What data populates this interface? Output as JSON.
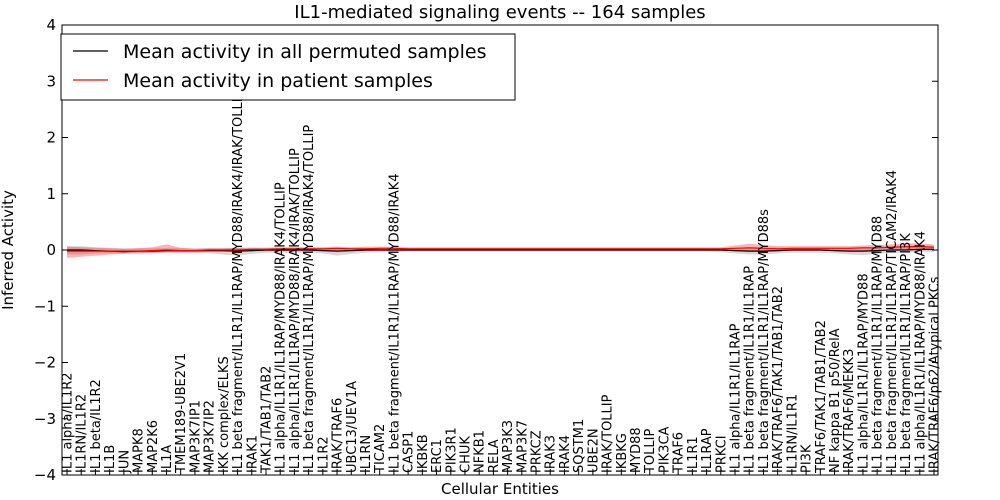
{
  "chart_data": {
    "type": "line",
    "title": "IL1-mediated signaling events -- 164 samples",
    "xlabel": "Cellular Entities",
    "ylabel": "Inferred Activity",
    "ylim": [
      -4,
      4
    ],
    "yticks": [
      -4,
      -3,
      -2,
      -1,
      0,
      1,
      2,
      3,
      4
    ],
    "ytick_labels": [
      "−4",
      "−3",
      "−2",
      "−1",
      "0",
      "1",
      "2",
      "3",
      "4"
    ],
    "grid": false,
    "legend_position": "top-left",
    "categories": [
      "IL1 alpha/IL1R2",
      "IL1RN/IL1R2",
      "IL1 beta/IL1R2",
      "IL1B",
      "JUN",
      "MAPK8",
      "MAP2K6",
      "IL1A",
      "TMEM189-UBE2V1",
      "MAP3K7IP1",
      "MAP3K7IP2",
      "IKK complex/ELKS",
      "IL1 beta fragment/IL1R1/IL1RAP/MYD88/IRAK4/IRAK/TOLLIP",
      "IRAK1",
      "TAK1/TAB1/TAB2",
      "IL1 alpha/IL1R1/IL1RAP/MYD88/IRAK4/TOLLIP",
      "IL1 alpha/IL1R1/IL1RAP/MYD88/IRAK4/IRAK/TOLLIP",
      "IL1 beta fragment/IL1R1/IL1RAP/MYD88/IRAK4/TOLLIP",
      "IL1R2",
      "IRAK/TRAF6",
      "UBC13/UEV1A",
      "IL1RN",
      "TICAM2",
      "IL1 beta fragment/IL1R1/IL1RAP/MYD88/IRAK4",
      "CASP1",
      "IKBKB",
      "ERC1",
      "PIK3R1",
      "CHUK",
      "NFKB1",
      "RELA",
      "MAP3K3",
      "MAP3K7",
      "PRKCZ",
      "IRAK3",
      "IRAK4",
      "SQSTM1",
      "UBE2N",
      "IRAK/TOLLIP",
      "IKBKG",
      "MYD88",
      "TOLLIP",
      "PIK3CA",
      "TRAF6",
      "IL1R1",
      "IL1RAP",
      "PRKCI",
      "IL1 alpha/IL1R1/IL1RAP",
      "IL1 beta fragment/IL1R1/IL1RAP",
      "IL1 beta fragment/IL1R1/IL1RAP/MYD88s",
      "IRAK/TRAF6/TAK1/TAB1/TAB2",
      "IL1RN/IL1R1",
      "PI3K",
      "TRAF6/TAK1/TAB1/TAB2",
      "NF kappa B1 p50/RelA",
      "IRAK/TRAF6/MEKK3",
      "IL1 alpha/IL1R1/IL1RAP/MYD88",
      "IL1 beta fragment/IL1R1/IL1RAP/MYD88",
      "IL1 beta fragment/IL1R1/IL1RAP/TICAM2/IRAK4",
      "IL1 beta fragment/IL1R1/IL1RAP/PI3K",
      "IL1 alpha/IL1R1/IL1RAP/MYD88/IRAK4",
      "IRAK/TRAF6/p62/Atypical PKCs"
    ],
    "series": [
      {
        "name": "Mean activity in all permuted samples",
        "color": "#000000",
        "values": [
          0.0,
          0.0,
          -0.01,
          -0.02,
          -0.03,
          -0.02,
          -0.02,
          -0.01,
          -0.01,
          -0.01,
          -0.01,
          -0.01,
          -0.02,
          -0.01,
          0.0,
          0.0,
          0.0,
          0.0,
          -0.01,
          -0.02,
          -0.01,
          0.0,
          0.0,
          0.0,
          0.0,
          0.0,
          0.0,
          0.0,
          0.0,
          0.0,
          0.0,
          0.0,
          0.0,
          0.0,
          0.0,
          0.0,
          0.0,
          0.0,
          0.0,
          0.0,
          0.0,
          0.0,
          0.0,
          0.0,
          0.0,
          0.0,
          0.0,
          -0.01,
          -0.02,
          -0.02,
          -0.01,
          0.0,
          0.0,
          0.0,
          -0.01,
          -0.02,
          -0.02,
          -0.01,
          0.0,
          0.0,
          0.01,
          0.01
        ],
        "band_low": [
          -0.08,
          -0.08,
          -0.06,
          -0.06,
          -0.06,
          -0.05,
          -0.05,
          -0.05,
          -0.05,
          -0.05,
          -0.06,
          -0.08,
          -0.1,
          -0.07,
          -0.05,
          -0.05,
          -0.05,
          -0.05,
          -0.06,
          -0.1,
          -0.07,
          -0.05,
          -0.04,
          -0.04,
          -0.03,
          -0.03,
          -0.03,
          -0.03,
          -0.03,
          -0.03,
          -0.03,
          -0.03,
          -0.03,
          -0.03,
          -0.03,
          -0.03,
          -0.03,
          -0.03,
          -0.03,
          -0.03,
          -0.03,
          -0.03,
          -0.03,
          -0.03,
          -0.03,
          -0.03,
          -0.04,
          -0.06,
          -0.08,
          -0.08,
          -0.06,
          -0.05,
          -0.05,
          -0.05,
          -0.06,
          -0.08,
          -0.09,
          -0.07,
          -0.05,
          -0.05,
          -0.04,
          -0.04
        ],
        "band_high": [
          0.07,
          0.07,
          0.05,
          0.04,
          0.03,
          0.03,
          0.03,
          0.03,
          0.03,
          0.03,
          0.03,
          0.03,
          0.04,
          0.04,
          0.04,
          0.04,
          0.04,
          0.04,
          0.04,
          0.04,
          0.04,
          0.04,
          0.03,
          0.03,
          0.03,
          0.03,
          0.03,
          0.03,
          0.03,
          0.03,
          0.03,
          0.03,
          0.03,
          0.03,
          0.03,
          0.03,
          0.03,
          0.03,
          0.03,
          0.03,
          0.03,
          0.03,
          0.03,
          0.03,
          0.03,
          0.03,
          0.03,
          0.04,
          0.04,
          0.04,
          0.04,
          0.04,
          0.04,
          0.04,
          0.04,
          0.04,
          0.05,
          0.05,
          0.05,
          0.06,
          0.07,
          0.07
        ]
      },
      {
        "name": "Mean activity in patient samples",
        "color": "#ff0000",
        "values": [
          -0.02,
          -0.02,
          -0.02,
          -0.02,
          -0.02,
          -0.02,
          -0.01,
          0.0,
          -0.01,
          -0.01,
          0.0,
          0.0,
          0.0,
          0.01,
          0.01,
          0.02,
          0.02,
          0.02,
          0.02,
          0.03,
          0.02,
          0.02,
          0.03,
          0.03,
          0.02,
          0.02,
          0.02,
          0.02,
          0.02,
          0.02,
          0.02,
          0.02,
          0.02,
          0.02,
          0.02,
          0.02,
          0.02,
          0.02,
          0.02,
          0.02,
          0.02,
          0.02,
          0.02,
          0.02,
          0.02,
          0.02,
          0.02,
          0.03,
          0.04,
          0.03,
          0.02,
          0.03,
          0.03,
          0.03,
          0.03,
          0.03,
          0.04,
          0.04,
          0.05,
          0.06,
          0.06,
          0.05
        ],
        "band_low": [
          -0.14,
          -0.12,
          -0.1,
          -0.08,
          -0.07,
          -0.06,
          -0.05,
          -0.04,
          -0.04,
          -0.04,
          -0.03,
          -0.03,
          -0.03,
          -0.02,
          -0.02,
          -0.02,
          -0.02,
          -0.02,
          -0.02,
          -0.01,
          -0.02,
          -0.02,
          -0.01,
          -0.01,
          -0.01,
          -0.01,
          -0.01,
          -0.01,
          -0.01,
          -0.01,
          -0.01,
          -0.01,
          -0.01,
          -0.01,
          -0.01,
          -0.01,
          -0.01,
          -0.01,
          -0.01,
          -0.01,
          -0.01,
          -0.01,
          -0.01,
          -0.01,
          -0.01,
          -0.01,
          -0.01,
          -0.02,
          -0.03,
          -0.03,
          -0.02,
          -0.01,
          -0.01,
          -0.01,
          -0.01,
          -0.01,
          -0.01,
          0.0,
          0.0,
          0.01,
          0.0,
          0.0
        ],
        "band_high": [
          0.06,
          0.05,
          0.04,
          0.03,
          0.02,
          0.03,
          0.05,
          0.1,
          0.04,
          0.02,
          0.03,
          0.03,
          0.04,
          0.04,
          0.04,
          0.05,
          0.05,
          0.05,
          0.05,
          0.06,
          0.05,
          0.06,
          0.06,
          0.06,
          0.05,
          0.05,
          0.05,
          0.05,
          0.05,
          0.05,
          0.05,
          0.05,
          0.05,
          0.05,
          0.05,
          0.05,
          0.05,
          0.05,
          0.05,
          0.05,
          0.05,
          0.05,
          0.05,
          0.05,
          0.05,
          0.05,
          0.05,
          0.08,
          0.11,
          0.09,
          0.07,
          0.07,
          0.07,
          0.07,
          0.07,
          0.07,
          0.08,
          0.09,
          0.1,
          0.12,
          0.12,
          0.1
        ]
      }
    ]
  }
}
